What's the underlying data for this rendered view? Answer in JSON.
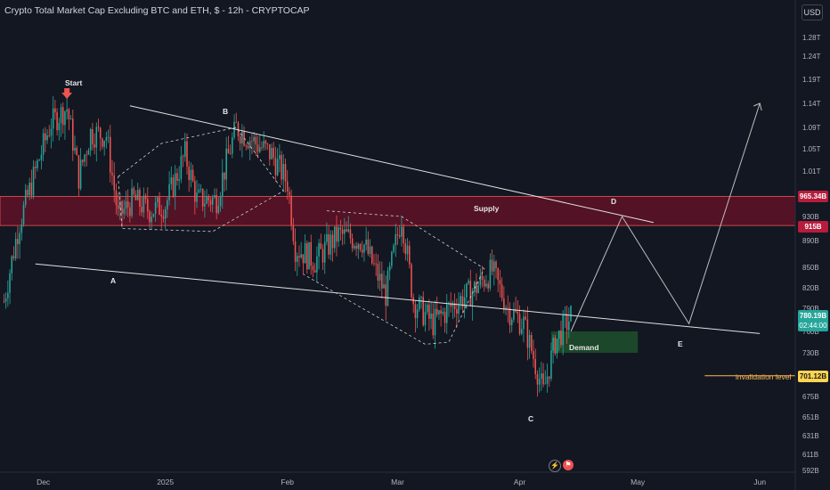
{
  "header": {
    "title": "Crypto Total Market Cap Excluding BTC and ETH, $ - 12h - CRYPTOCAP",
    "currency": "USD"
  },
  "annotations": {
    "start": "Start",
    "a": "A",
    "b": "B",
    "c": "C",
    "d": "D",
    "e": "E",
    "supply": "Supply",
    "demand": "Demand",
    "invalidation": "invalidation level"
  },
  "badges": {
    "supply_top": "965.34B",
    "supply_bottom": "915B",
    "last_price": "780.19B",
    "countdown": "02:44:00",
    "invalidation": "701.12B"
  },
  "colors": {
    "up": "#26a69a",
    "down": "#ef5350",
    "supply_zone": "#880e2a",
    "demand_zone": "#1e4d2b",
    "background": "#131722",
    "grid_text": "#b2b5be"
  },
  "icons": {
    "start_marker": "down-arrow-icon",
    "bottom_left": "lightning-icon",
    "bottom_right": "flag-icon"
  },
  "chart_data": {
    "type": "candlestick",
    "title": "Crypto Total Market Cap Excluding BTC and ETH, $ - 12h - CRYPTOCAP",
    "x_ticks": [
      "Dec",
      "2025",
      "Feb",
      "Mar",
      "Apr",
      "May",
      "Jun"
    ],
    "y_ticks": [
      "1.28T",
      "1.24T",
      "1.19T",
      "1.14T",
      "1.09T",
      "1.05T",
      "1.01T",
      "930B",
      "890B",
      "850B",
      "820B",
      "790B",
      "760B",
      "730B",
      "675B",
      "651B",
      "631B",
      "611B",
      "592B"
    ],
    "y_tick_values": [
      1280,
      1240,
      1190,
      1140,
      1090,
      1050,
      1010,
      930,
      890,
      850,
      820,
      790,
      760,
      730,
      675,
      651,
      631,
      611,
      592
    ],
    "ylim": [
      580,
      1300
    ],
    "x_range_days": [
      "2024-11-20",
      "2025-06-10"
    ],
    "close_path": [
      {
        "date": "2024-11-21",
        "value": 800
      },
      {
        "date": "2024-11-25",
        "value": 920
      },
      {
        "date": "2024-11-29",
        "value": 1010
      },
      {
        "date": "2024-12-03",
        "value": 1100
      },
      {
        "date": "2024-12-07",
        "value": 1130
      },
      {
        "date": "2024-12-10",
        "value": 1000
      },
      {
        "date": "2024-12-13",
        "value": 1080
      },
      {
        "date": "2024-12-17",
        "value": 1075
      },
      {
        "date": "2024-12-20",
        "value": 930
      },
      {
        "date": "2024-12-24",
        "value": 960
      },
      {
        "date": "2024-12-28",
        "value": 940
      },
      {
        "date": "2025-01-01",
        "value": 950
      },
      {
        "date": "2025-01-06",
        "value": 1040
      },
      {
        "date": "2025-01-09",
        "value": 960
      },
      {
        "date": "2025-01-14",
        "value": 960
      },
      {
        "date": "2025-01-19",
        "value": 1090
      },
      {
        "date": "2025-01-24",
        "value": 1060
      },
      {
        "date": "2025-01-28",
        "value": 1040
      },
      {
        "date": "2025-02-01",
        "value": 990
      },
      {
        "date": "2025-02-03",
        "value": 880
      },
      {
        "date": "2025-02-08",
        "value": 860
      },
      {
        "date": "2025-02-14",
        "value": 900
      },
      {
        "date": "2025-02-20",
        "value": 890
      },
      {
        "date": "2025-02-26",
        "value": 810
      },
      {
        "date": "2025-03-02",
        "value": 930
      },
      {
        "date": "2025-03-05",
        "value": 800
      },
      {
        "date": "2025-03-10",
        "value": 770
      },
      {
        "date": "2025-03-15",
        "value": 795
      },
      {
        "date": "2025-03-20",
        "value": 815
      },
      {
        "date": "2025-03-25",
        "value": 845
      },
      {
        "date": "2025-03-29",
        "value": 790
      },
      {
        "date": "2025-04-02",
        "value": 770
      },
      {
        "date": "2025-04-07",
        "value": 680
      },
      {
        "date": "2025-04-10",
        "value": 745
      },
      {
        "date": "2025-04-14",
        "value": 780
      }
    ],
    "zones": {
      "supply": [
        915,
        965.34
      ],
      "demand": [
        730,
        760
      ],
      "invalidation": 701.12
    },
    "projection": [
      {
        "date": "2025-04-14",
        "value": 760
      },
      {
        "date": "2025-04-27",
        "value": 930
      },
      {
        "date": "2025-05-14",
        "value": 770
      },
      {
        "date": "2025-06-01",
        "value": 1140
      }
    ],
    "grid": false
  }
}
